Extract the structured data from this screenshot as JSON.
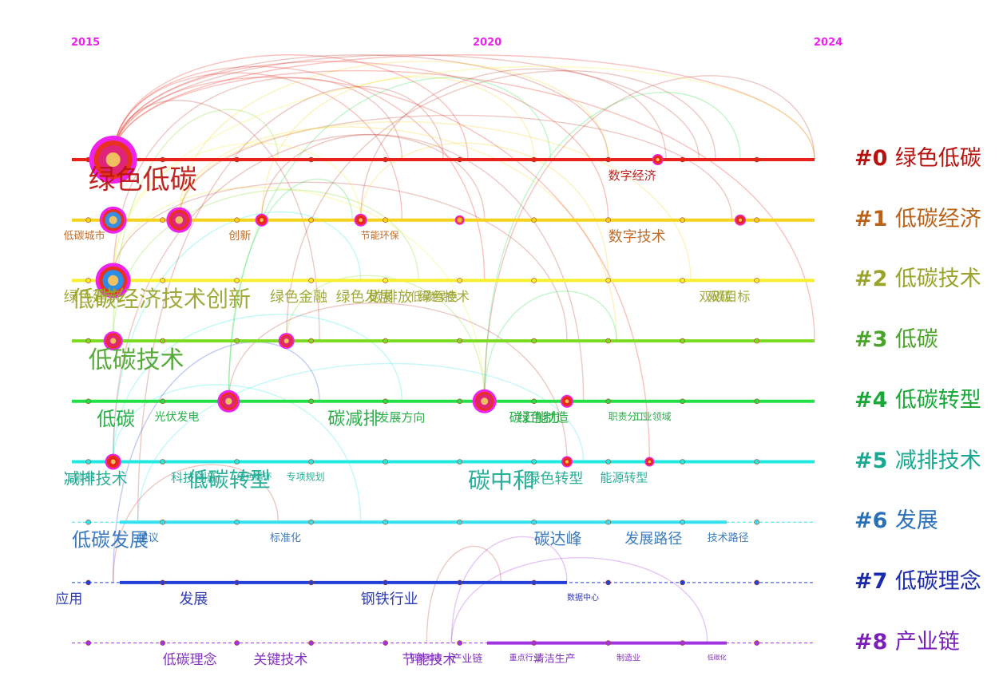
{
  "chart_data": {
    "type": "timeline",
    "title": "",
    "x_range": [
      2015,
      2024
    ],
    "years": {
      "start": "2015",
      "mid": "2020",
      "end": "2024"
    },
    "clusters": [
      {
        "id": "#0",
        "name": "绿色低碳",
        "color": "#b8120f",
        "line": "#e8231a",
        "dash": false,
        "start": 2015,
        "end": 2024
      },
      {
        "id": "#1",
        "name": "低碳经济",
        "color": "#b8631a",
        "line": "#f5d31c",
        "dash": false,
        "start": 2015,
        "end": 2024
      },
      {
        "id": "#2",
        "name": "低碳技术",
        "color": "#9aa32a",
        "line": "#f6ef2e",
        "dash": false,
        "start": 2015,
        "end": 2024
      },
      {
        "id": "#3",
        "name": "低碳",
        "color": "#4aa42a",
        "line": "#7ddc22",
        "dash": false,
        "start": 2015,
        "end": 2024
      },
      {
        "id": "#4",
        "name": "低碳转型",
        "color": "#18a838",
        "line": "#22e045",
        "dash": false,
        "start": 2015,
        "end": 2024
      },
      {
        "id": "#5",
        "name": "减排技术",
        "color": "#18a890",
        "line": "#22e8e0",
        "dash": false,
        "start": 2015,
        "end": 2024
      },
      {
        "id": "#6",
        "name": "发展",
        "color": "#2a70b8",
        "line": "#33e2f0",
        "dash": true,
        "start": 2015,
        "end": 2024
      },
      {
        "id": "#7",
        "name": "低碳理念",
        "color": "#1a2aa8",
        "line": "#2240d8",
        "dash": true,
        "start": 2015,
        "end": 2024
      },
      {
        "id": "#8",
        "name": "产业链",
        "color": "#7a20b8",
        "line": "#a034e0",
        "dash": true,
        "start": 2015,
        "end": 2024
      }
    ],
    "nodes": [
      {
        "cluster": 0,
        "year": 2015.5,
        "size": 30,
        "color": "#e0247a"
      },
      {
        "cluster": 1,
        "year": 2015.5,
        "size": 17,
        "color": "#3a8ee0"
      },
      {
        "cluster": 1,
        "year": 2016.3,
        "size": 16,
        "color": "#e0247a"
      },
      {
        "cluster": 1,
        "year": 2017.3,
        "size": 8,
        "color": "#e8231a"
      },
      {
        "cluster": 1,
        "year": 2018.5,
        "size": 8,
        "color": "#e8231a"
      },
      {
        "cluster": 1,
        "year": 2019.7,
        "size": 6,
        "color": "#e89a1a"
      },
      {
        "cluster": 1,
        "year": 2023.1,
        "size": 7,
        "color": "#e8231a"
      },
      {
        "cluster": 2,
        "year": 2015.5,
        "size": 22,
        "color": "#2a8ee8"
      },
      {
        "cluster": 3,
        "year": 2015.5,
        "size": 12,
        "color": "#e0247a"
      },
      {
        "cluster": 3,
        "year": 2017.6,
        "size": 10,
        "color": "#e0247a"
      },
      {
        "cluster": 4,
        "year": 2016.9,
        "size": 14,
        "color": "#e0247a"
      },
      {
        "cluster": 4,
        "year": 2020.0,
        "size": 15,
        "color": "#e0247a"
      },
      {
        "cluster": 4,
        "year": 2021.0,
        "size": 8,
        "color": "#e8231a"
      },
      {
        "cluster": 5,
        "year": 2015.5,
        "size": 10,
        "color": "#e8231a"
      },
      {
        "cluster": 5,
        "year": 2021.0,
        "size": 7,
        "color": "#e8231a"
      },
      {
        "cluster": 5,
        "year": 2022.0,
        "size": 6,
        "color": "#e8231a"
      },
      {
        "cluster": 0,
        "year": 2022.1,
        "size": 7,
        "color": "#e8231a"
      }
    ],
    "keywords": [
      {
        "text": "绿色低碳",
        "cluster": 0,
        "year": 2015.2,
        "size": 34
      },
      {
        "text": "低碳经济技术创新",
        "cluster": 2,
        "year": 2015.0,
        "size": 28
      },
      {
        "text": "低碳技术",
        "cluster": 3,
        "year": 2015.2,
        "size": 30
      },
      {
        "text": "绿色建筑",
        "cluster": 2,
        "year": 2014.9,
        "size": 18
      },
      {
        "text": "低碳城市",
        "cluster": 1,
        "year": 2014.9,
        "size": 13
      },
      {
        "text": "创新",
        "cluster": 1,
        "year": 2016.9,
        "size": 14
      },
      {
        "text": "低碳",
        "cluster": 4,
        "year": 2015.3,
        "size": 24
      },
      {
        "text": "光伏发电",
        "cluster": 4,
        "year": 2016.0,
        "size": 14
      },
      {
        "text": "低碳转型",
        "cluster": 5,
        "year": 2016.4,
        "size": 26
      },
      {
        "text": "减排技术",
        "cluster": 5,
        "year": 2014.9,
        "size": 20
      },
      {
        "text": "低碳发展",
        "cluster": 6,
        "year": 2015.0,
        "size": 24
      },
      {
        "text": "工信部",
        "cluster": 5,
        "year": 2014.9,
        "size": 13
      },
      {
        "text": "科技创新",
        "cluster": 5,
        "year": 2016.2,
        "size": 15
      },
      {
        "text": "绿色循环",
        "cluster": 5,
        "year": 2017.0,
        "size": 11
      },
      {
        "text": "专项规划",
        "cluster": 5,
        "year": 2017.6,
        "size": 12
      },
      {
        "text": "碳减排",
        "cluster": 4,
        "year": 2018.1,
        "size": 22
      },
      {
        "text": "发展方向",
        "cluster": 4,
        "year": 2018.7,
        "size": 15
      },
      {
        "text": "绿色金融",
        "cluster": 2,
        "year": 2017.4,
        "size": 18
      },
      {
        "text": "碳排放",
        "cluster": 2,
        "year": 2018.6,
        "size": 18
      },
      {
        "text": "绿色发展",
        "cluster": 2,
        "year": 2018.2,
        "size": 18
      },
      {
        "text": "低碳绿色",
        "cluster": 2,
        "year": 2019.1,
        "size": 15
      },
      {
        "text": "绿色技术",
        "cluster": 2,
        "year": 2019.2,
        "size": 16
      },
      {
        "text": "节能环保",
        "cluster": 1,
        "year": 2018.5,
        "size": 12
      },
      {
        "text": "数字经济",
        "cluster": 0,
        "year": 2021.5,
        "size": 15
      },
      {
        "text": "数字技术",
        "cluster": 1,
        "year": 2021.5,
        "size": 18
      },
      {
        "text": "双碳目标",
        "cluster": 2,
        "year": 2022.6,
        "size": 16
      },
      {
        "text": "双碳",
        "cluster": 2,
        "year": 2022.7,
        "size": 16
      },
      {
        "text": "碳汇能力",
        "cluster": 4,
        "year": 2020.3,
        "size": 16
      },
      {
        "text": "绿色制造",
        "cluster": 4,
        "year": 2020.4,
        "size": 16
      },
      {
        "text": "绿色转型",
        "cluster": 5,
        "year": 2020.5,
        "size": 18
      },
      {
        "text": "碳中和",
        "cluster": 5,
        "year": 2019.8,
        "size": 28
      },
      {
        "text": "碳达峰",
        "cluster": 6,
        "year": 2020.6,
        "size": 20
      },
      {
        "text": "能源转型",
        "cluster": 5,
        "year": 2021.4,
        "size": 15
      },
      {
        "text": "发展路径",
        "cluster": 6,
        "year": 2021.7,
        "size": 18
      },
      {
        "text": "技术路径",
        "cluster": 6,
        "year": 2022.7,
        "size": 13
      },
      {
        "text": "工业领域",
        "cluster": 4,
        "year": 2021.8,
        "size": 12
      },
      {
        "text": "职责分工",
        "cluster": 4,
        "year": 2021.5,
        "size": 12
      },
      {
        "text": "建议",
        "cluster": 6,
        "year": 2015.8,
        "size": 13
      },
      {
        "text": "发展",
        "cluster": 7,
        "year": 2016.3,
        "size": 18
      },
      {
        "text": "标准化",
        "cluster": 6,
        "year": 2017.4,
        "size": 13
      },
      {
        "text": "钢铁行业",
        "cluster": 7,
        "year": 2018.5,
        "size": 18
      },
      {
        "text": "应用",
        "cluster": 7,
        "year": 2014.8,
        "size": 17
      },
      {
        "text": "低碳理念",
        "cluster": 8,
        "year": 2016.1,
        "size": 17
      },
      {
        "text": "关键技术",
        "cluster": 8,
        "year": 2017.2,
        "size": 17
      },
      {
        "text": "节能技术",
        "cluster": 8,
        "year": 2019.0,
        "size": 17
      },
      {
        "text": "数据中心",
        "cluster": 7,
        "year": 2021.0,
        "size": 10
      },
      {
        "text": "产业链",
        "cluster": 8,
        "year": 2019.6,
        "size": 13
      },
      {
        "text": "清洁生产",
        "cluster": 8,
        "year": 2020.6,
        "size": 13
      },
      {
        "text": "低碳制造",
        "cluster": 8,
        "year": 2019.1,
        "size": 10
      },
      {
        "text": "重点行业",
        "cluster": 8,
        "year": 2020.3,
        "size": 10
      },
      {
        "text": "制造业",
        "cluster": 8,
        "year": 2021.6,
        "size": 10
      },
      {
        "text": "低碳化",
        "cluster": 8,
        "year": 2022.7,
        "size": 8
      }
    ],
    "arcs": [
      [
        0,
        2015.5,
        0,
        2021.5
      ],
      [
        0,
        2015.5,
        0,
        2024.0
      ],
      [
        0,
        2015.5,
        1,
        2021.5
      ],
      [
        0,
        2015.5,
        0,
        2022.6
      ],
      [
        0,
        2015.5,
        1,
        2019.0
      ],
      [
        0,
        2015.5,
        2,
        2020.0
      ],
      [
        0,
        2015.5,
        3,
        2018.0
      ],
      [
        0,
        2015.5,
        0,
        2019.8
      ],
      [
        1,
        2016.3,
        0,
        2021.5
      ],
      [
        1,
        2016.3,
        1,
        2023.0
      ],
      [
        1,
        2016.3,
        3,
        2021.6
      ],
      [
        1,
        2016.3,
        2,
        2022.5
      ],
      [
        2,
        2015.5,
        0,
        2019.0
      ],
      [
        2,
        2015.5,
        1,
        2018.5
      ],
      [
        2,
        2015.5,
        4,
        2020.0
      ],
      [
        2,
        2015.5,
        3,
        2021.0
      ],
      [
        3,
        2015.5,
        0,
        2017.5
      ],
      [
        3,
        2015.5,
        2,
        2019.2
      ],
      [
        3,
        2017.6,
        0,
        2022.8
      ],
      [
        3,
        2017.6,
        4,
        2020.0
      ],
      [
        4,
        2016.9,
        0,
        2020.8
      ],
      [
        4,
        2016.9,
        5,
        2021.0
      ],
      [
        4,
        2016.9,
        1,
        2018.4
      ],
      [
        4,
        2020.0,
        0,
        2023.1
      ],
      [
        4,
        2020.0,
        0,
        2024.0
      ],
      [
        4,
        2020.0,
        3,
        2021.6
      ],
      [
        5,
        2015.5,
        2,
        2018.5
      ],
      [
        5,
        2015.5,
        1,
        2020.0
      ],
      [
        5,
        2015.5,
        4,
        2019.0
      ],
      [
        5,
        2015.5,
        6,
        2018.5
      ],
      [
        1,
        2018.5,
        0,
        2022.2
      ],
      [
        1,
        2018.5,
        2,
        2021.5
      ],
      [
        1,
        2017.3,
        0,
        2020.6
      ],
      [
        1,
        2017.3,
        4,
        2021.2
      ],
      [
        2,
        2015.5,
        0,
        2024.0
      ],
      [
        0,
        2015.5,
        3,
        2024.0
      ],
      [
        6,
        2015.8,
        0,
        2019.5
      ],
      [
        6,
        2015.8,
        5,
        2021.2
      ],
      [
        7,
        2015.5,
        4,
        2018.0
      ],
      [
        7,
        2015.5,
        6,
        2017.5
      ],
      [
        8,
        2019.6,
        7,
        2021.0
      ],
      [
        8,
        2019.6,
        8,
        2022.7
      ],
      [
        8,
        2019.3,
        7,
        2020.2
      ],
      [
        0,
        2015.5,
        5,
        2022.0
      ]
    ]
  }
}
